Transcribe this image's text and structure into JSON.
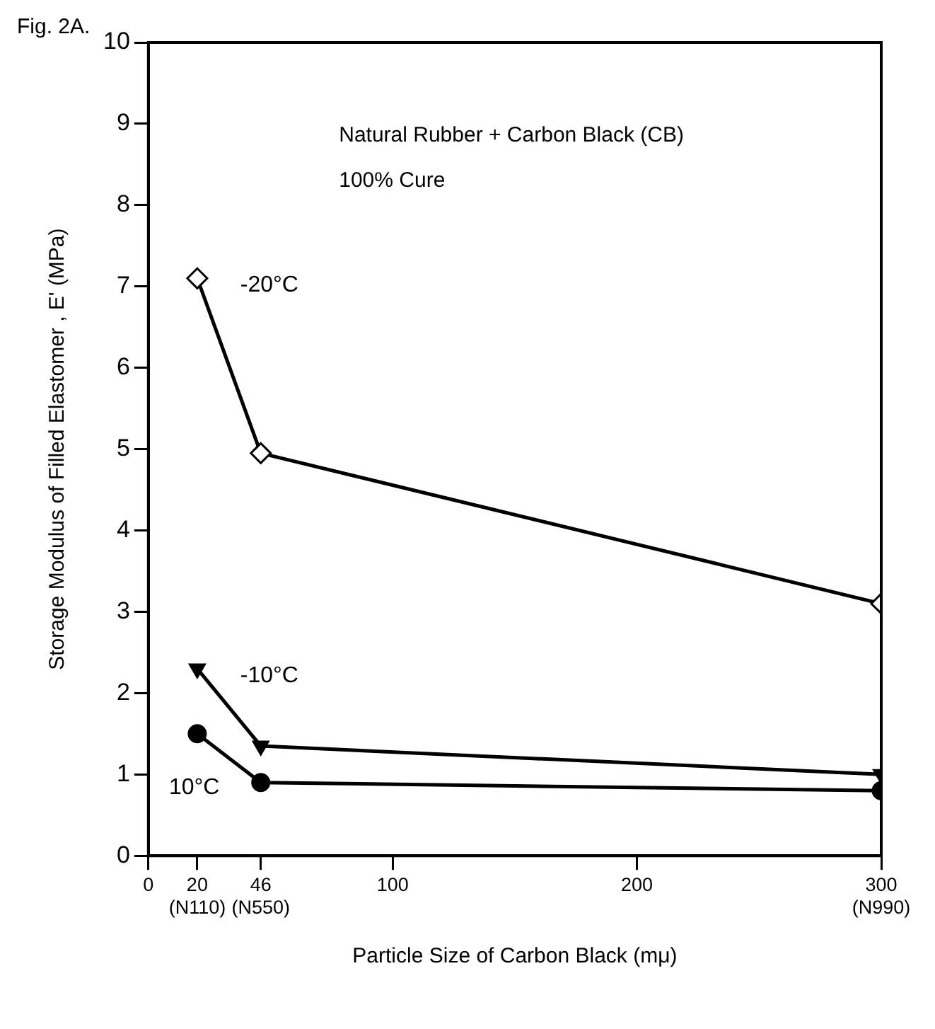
{
  "chart_data": {
    "type": "line",
    "title": "Fig. 2A.",
    "xlabel": "Particle Size of Carbon Black (mμ)",
    "ylabel": "Storage Modulus of Filled Elastomer , E' (MPa)",
    "annotations": [
      "Natural Rubber + Carbon Black (CB)",
      "100% Cure"
    ],
    "x": [
      20,
      46,
      300
    ],
    "series": [
      {
        "name": "-20°C",
        "color": "#000000",
        "marker": "diamond",
        "values": [
          7.1,
          4.95,
          3.1
        ]
      },
      {
        "name": "-10°C",
        "color": "#000000",
        "marker": "triangle",
        "values": [
          2.3,
          1.35,
          1.0
        ]
      },
      {
        "name": "10°C",
        "color": "#000000",
        "marker": "circle",
        "values": [
          1.5,
          0.9,
          0.8
        ]
      }
    ],
    "xlim": [
      0,
      300
    ],
    "xticks": [
      0,
      {
        "value": 20,
        "label": "20\n(N110)"
      },
      {
        "value": 46,
        "label": "46\n(N550)"
      },
      100,
      200,
      {
        "value": 300,
        "label": "300\n(N990)"
      }
    ],
    "ylim": [
      0,
      10
    ],
    "yticks": [
      0,
      1,
      2,
      3,
      4,
      5,
      6,
      7,
      8,
      9,
      10
    ],
    "grid": false,
    "legend": false
  }
}
